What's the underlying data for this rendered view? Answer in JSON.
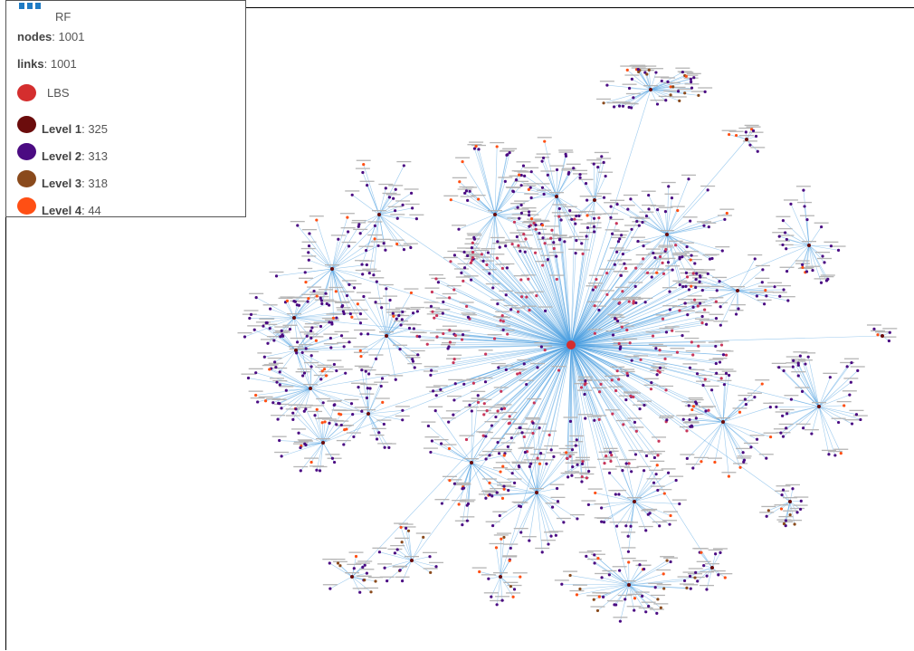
{
  "legend": {
    "title": "RF",
    "nodes_label": "nodes",
    "nodes_value": ": 1001",
    "links_label": "links",
    "links_value": ": 1001",
    "items": [
      {
        "label": "LBS",
        "count": "",
        "color": "#d42e2e"
      },
      {
        "label": "Level 1",
        "count": ": 325",
        "color": "#6b0c0c"
      },
      {
        "label": "Level 2",
        "count": ": 313",
        "color": "#4b0b82"
      },
      {
        "label": "Level 3",
        "count": ": 318",
        "color": "#8a4a1c"
      },
      {
        "label": "Level 4",
        "count": ": 44",
        "color": "#ff4f14"
      }
    ]
  },
  "colors": {
    "link": "#4a9fe0",
    "rf_icon": "#1f7bc4",
    "node_label": "#b5b5b5"
  },
  "graph": {
    "center": {
      "level": "LBS"
    },
    "level1_count": 325,
    "level2_count": 313,
    "level3_count": 318,
    "level4_count": 44
  }
}
